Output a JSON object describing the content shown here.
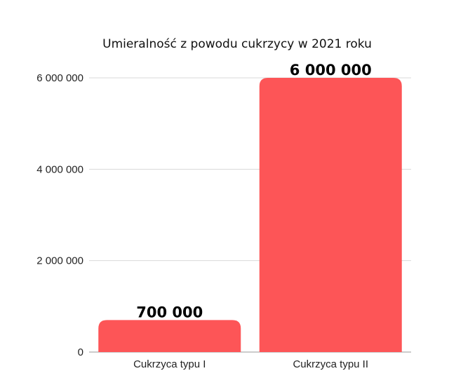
{
  "chart_data": {
    "type": "bar",
    "title": "Umieralność z powodu cukrzycy w 2021 roku",
    "categories": [
      "Cukrzyca typu I",
      "Cukrzyca typu II"
    ],
    "values": [
      700000,
      6000000
    ],
    "data_labels": [
      "700 000",
      "6 000 000"
    ],
    "ylim": [
      0,
      6000000
    ],
    "yticks": [
      0,
      2000000,
      4000000,
      6000000
    ],
    "ytick_labels": [
      "0",
      "2 000 000",
      "4 000 000",
      "6 000 000"
    ],
    "grid": true,
    "legend": "none",
    "bar_color": "#fd5557",
    "grid_color": "#d9d9d9"
  }
}
